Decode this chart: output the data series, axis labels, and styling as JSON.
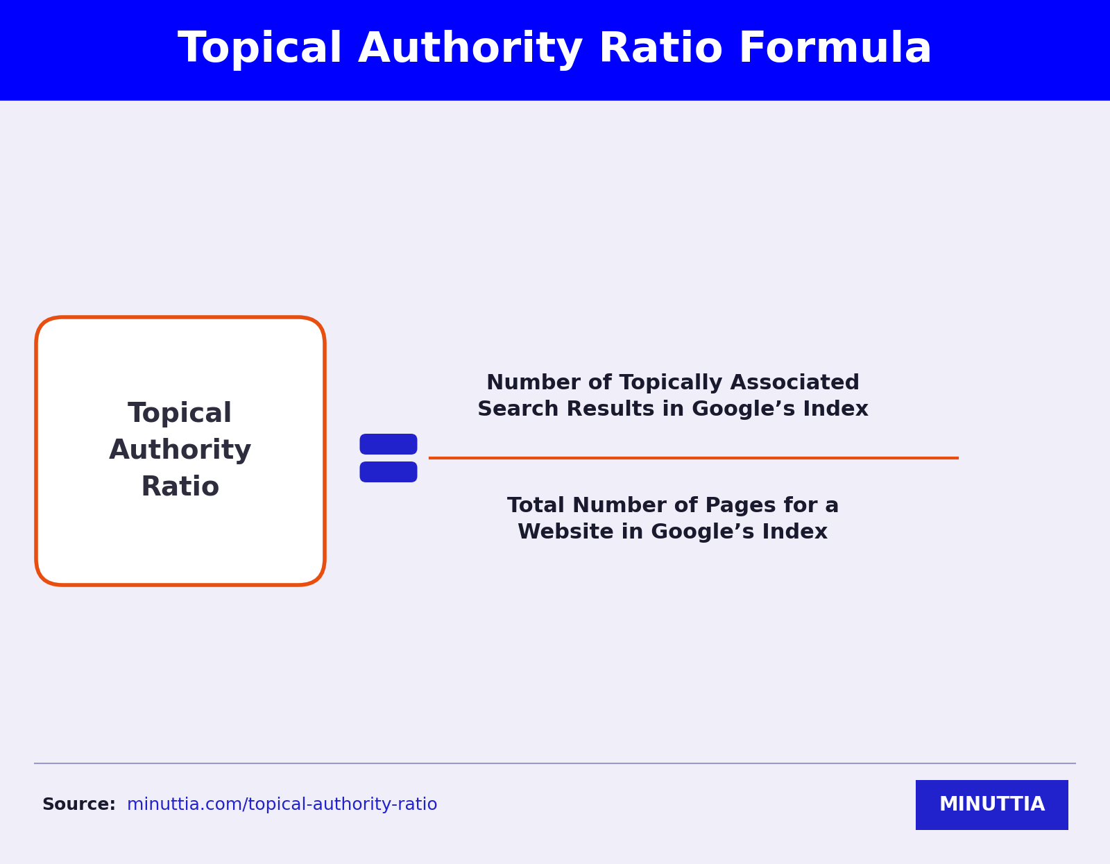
{
  "title": "Topical Authority Ratio Formula",
  "title_color": "#ffffff",
  "title_bg_color": "#0000ff",
  "bg_color": "#f0eef8",
  "box_text": "Topical\nAuthority\nRatio",
  "box_text_color": "#2d2d3d",
  "box_border_color": "#e84e0f",
  "box_fill_color": "#ffffff",
  "equals_color": "#2222cc",
  "numerator_text": "Number of Topically Associated\nSearch Results in Google’s Index",
  "denominator_text": "Total Number of Pages for a\nWebsite in Google’s Index",
  "fraction_line_color": "#e84e0f",
  "formula_text_color": "#1a1a2e",
  "source_label": "Source:",
  "source_label_color": "#1a1a2e",
  "source_url": " minuttia.com/topical-authority-ratio",
  "source_url_color": "#2222cc",
  "footer_line_color": "#9999cc",
  "logo_text": "MINUTTIA",
  "logo_bg_color": "#2222cc",
  "logo_text_color": "#ffffff"
}
